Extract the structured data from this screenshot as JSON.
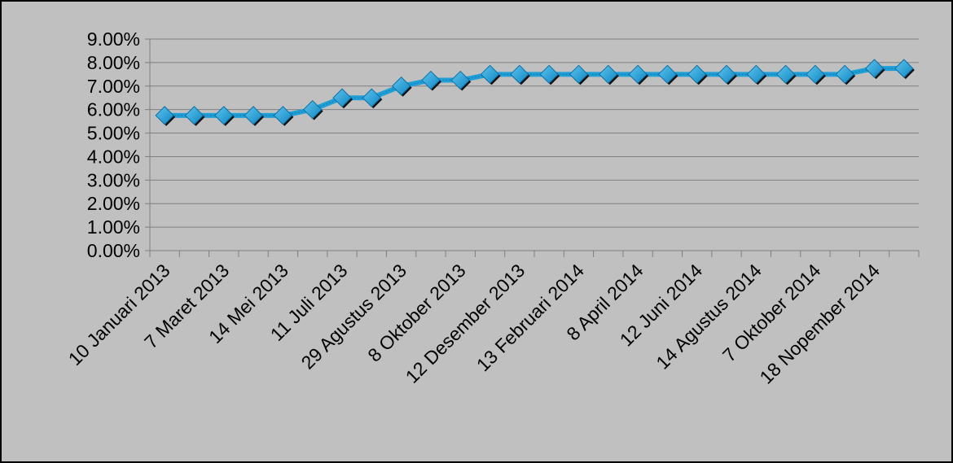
{
  "chart_data": {
    "type": "line",
    "title": "",
    "xlabel": "",
    "ylabel": "",
    "ylim": [
      0,
      9
    ],
    "y_ticks": [
      "0.00%",
      "1.00%",
      "2.00%",
      "3.00%",
      "4.00%",
      "5.00%",
      "6.00%",
      "7.00%",
      "8.00%",
      "9.00%"
    ],
    "x_tick_labels": [
      "10 Januari 2013",
      "7 Maret 2013",
      "14 Mei 2013",
      "11 Juli 2013",
      "29 Agustus 2013",
      "8 Oktober 2013",
      "12 Desember 2013",
      "13 Februari 2014",
      "8 April 2014",
      "12 Juni 2014",
      "14 Agustus 2014",
      "7 Oktober 2014",
      "18 Nopember 2014"
    ],
    "x_tick_label_every": 2,
    "grid": true,
    "legend": "none",
    "series": [
      {
        "values": [
          5.75,
          5.75,
          5.75,
          5.75,
          5.75,
          6.0,
          6.5,
          6.5,
          7.0,
          7.25,
          7.25,
          7.5,
          7.5,
          7.5,
          7.5,
          7.5,
          7.5,
          7.5,
          7.5,
          7.5,
          7.5,
          7.5,
          7.5,
          7.5,
          7.75,
          7.75
        ],
        "color": "#1f9fd8",
        "marker": "diamond"
      }
    ]
  }
}
